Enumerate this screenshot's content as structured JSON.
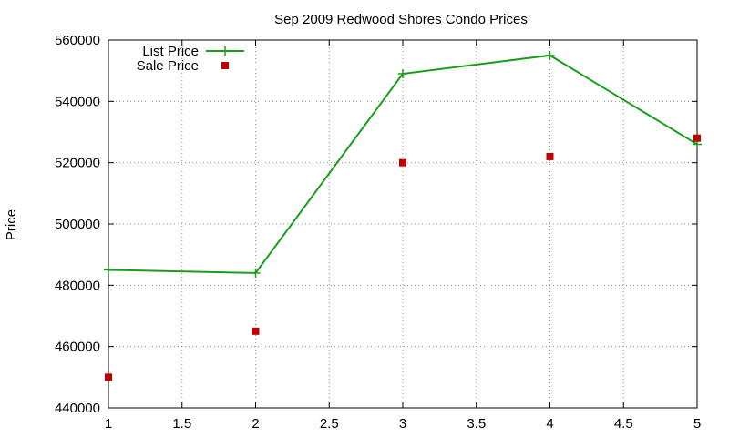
{
  "chart_data": {
    "type": "line",
    "title": "Sep 2009 Redwood Shores Condo Prices",
    "xlabel": "",
    "ylabel": "Price",
    "xlim": [
      1,
      5
    ],
    "ylim": [
      440000,
      560000
    ],
    "x_ticks": [
      "1",
      "1.5",
      "2",
      "2.5",
      "3",
      "3.5",
      "4",
      "4.5",
      "5"
    ],
    "y_ticks": [
      "440000",
      "460000",
      "480000",
      "500000",
      "520000",
      "540000",
      "560000"
    ],
    "grid": true,
    "legend_position": "top-left",
    "series": [
      {
        "name": "List Price",
        "style": "linespoints",
        "marker": "plus",
        "color": "#1a9e1a",
        "x": [
          1,
          2,
          3,
          4,
          5
        ],
        "y": [
          485000,
          484000,
          549000,
          555000,
          526000
        ]
      },
      {
        "name": "Sale Price",
        "style": "points",
        "marker": "square",
        "color": "#c00000",
        "x": [
          1,
          2,
          3,
          4,
          5
        ],
        "y": [
          450000,
          465000,
          520000,
          522000,
          528000
        ]
      }
    ]
  }
}
